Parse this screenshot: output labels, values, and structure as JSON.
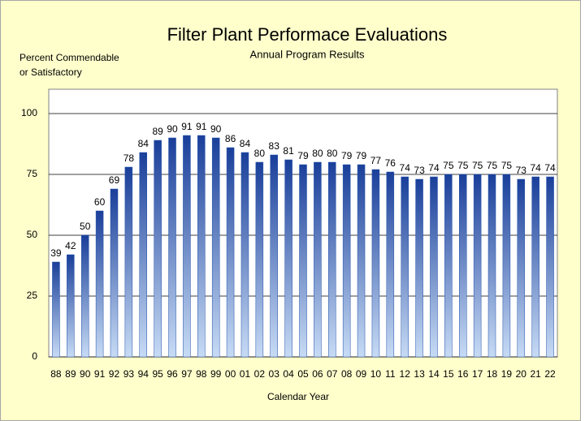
{
  "chart_data": {
    "type": "bar",
    "title": "Filter Plant Performace Evaluations",
    "subtitle": "Annual Program Results",
    "y_label": [
      "Percent Commendable",
      "or Satisfactory"
    ],
    "x_label": "Calendar Year",
    "categories": [
      "88",
      "89",
      "90",
      "91",
      "92",
      "93",
      "94",
      "95",
      "96",
      "97",
      "98",
      "99",
      "00",
      "01",
      "02",
      "03",
      "04",
      "05",
      "06",
      "07",
      "08",
      "09",
      "10",
      "11",
      "12",
      "13",
      "14",
      "15",
      "16",
      "17",
      "18",
      "19",
      "20",
      "21",
      "22"
    ],
    "values": [
      39,
      42,
      50,
      60,
      69,
      78,
      84,
      89,
      90,
      91,
      91,
      90,
      86,
      84,
      80,
      83,
      81,
      79,
      80,
      80,
      79,
      79,
      77,
      76,
      74,
      73,
      74,
      75,
      75,
      75,
      75,
      75,
      73,
      74,
      74
    ],
    "color": "#1f4fa8",
    "ylim": [
      0,
      110
    ],
    "yticks": [
      0,
      25,
      50,
      75,
      100
    ],
    "grid": true
  }
}
